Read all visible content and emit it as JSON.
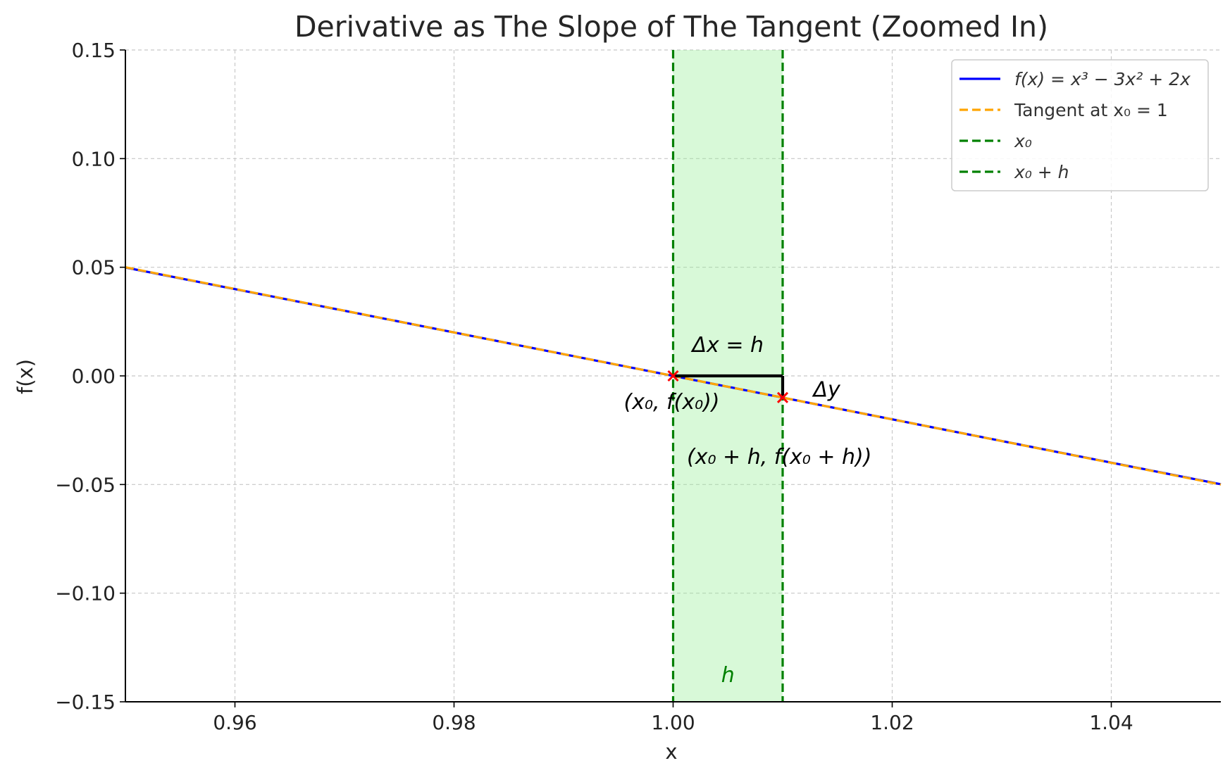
{
  "chart_data": {
    "type": "line",
    "title": "Derivative as The Slope of The Tangent (Zoomed In)",
    "xlabel": "x",
    "ylabel": "f(x)",
    "xlim": [
      0.95,
      1.05
    ],
    "ylim": [
      -0.15,
      0.15
    ],
    "x_ticks": [
      0.96,
      0.98,
      1.0,
      1.02,
      1.04
    ],
    "x_tick_labels": [
      "0.96",
      "0.98",
      "1.00",
      "1.02",
      "1.04"
    ],
    "y_ticks": [
      0.15,
      0.1,
      0.05,
      0.0,
      -0.05,
      -0.1,
      -0.15
    ],
    "y_tick_labels": [
      "0.15",
      "0.10",
      "0.05",
      "0.00",
      "−0.05",
      "−0.10",
      "−0.15"
    ],
    "grid": true,
    "legend_position": "top-right",
    "series": [
      {
        "name": "f(x) = x³ − 3x² + 2x",
        "style": "solid",
        "color": "#0000ff",
        "points": [
          [
            0.95,
            0.049875
          ],
          [
            0.97,
            0.029973
          ],
          [
            0.99,
            0.009999
          ],
          [
            1.0,
            0.0
          ],
          [
            1.01,
            -0.009999
          ],
          [
            1.03,
            -0.029973
          ],
          [
            1.05,
            -0.049875
          ]
        ]
      },
      {
        "name": "Tangent at x₀ = 1",
        "style": "dashed",
        "color": "#ffa500",
        "points": [
          [
            0.95,
            0.05
          ],
          [
            1.05,
            -0.05
          ]
        ]
      },
      {
        "name": "x₀",
        "style": "dashed",
        "color": "#008000",
        "vertical_x": 1.0
      },
      {
        "name": "x₀ + h",
        "style": "dashed",
        "color": "#008000",
        "vertical_x": 1.01
      }
    ],
    "shaded_region": {
      "x_from": 1.0,
      "x_to": 1.01,
      "color": "#90ee90"
    },
    "markers": [
      {
        "x": 1.0,
        "y": 0.0,
        "color": "#ff0000",
        "label": "(x₀, f(x₀))"
      },
      {
        "x": 1.01,
        "y": -0.01,
        "color": "#ff0000",
        "label": "(x₀ + h, f(x₀ + h))"
      }
    ],
    "delta_lines": {
      "x0": 1.0,
      "x1": 1.01,
      "y0": 0.0,
      "y1": -0.01,
      "color": "#000000"
    },
    "annotations": [
      {
        "text": "Δx = h",
        "x": 1.005,
        "y": 0.011
      },
      {
        "text": "Δy",
        "x": 1.0128,
        "y": -0.005
      },
      {
        "text": "h",
        "x": 1.005,
        "y": -0.137,
        "color": "#008000"
      }
    ]
  }
}
